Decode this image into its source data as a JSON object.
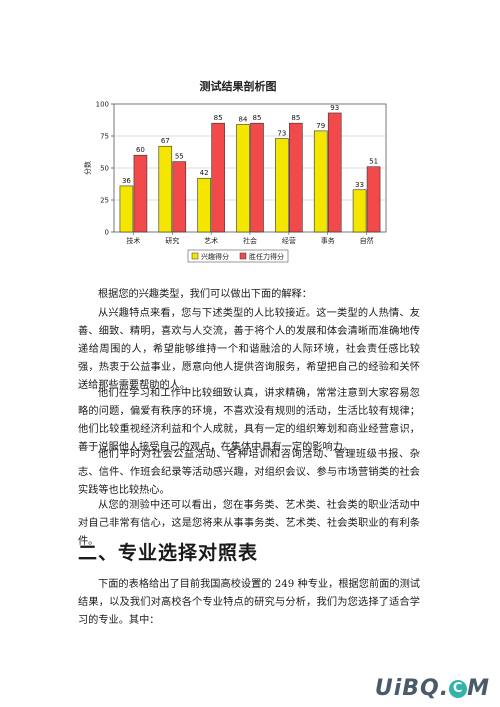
{
  "chart_data": {
    "type": "bar",
    "title": "测试结果剖析图",
    "xlabel": "",
    "ylabel": "分数",
    "ylim": [
      0,
      100
    ],
    "yticks": [
      0,
      25,
      50,
      75,
      100
    ],
    "grid": true,
    "legend_position": "bottom",
    "categories": [
      "技术",
      "研究",
      "艺术",
      "社会",
      "经营",
      "事务",
      "自然"
    ],
    "series": [
      {
        "name": "兴趣得分",
        "color": "#f5e600",
        "values": [
          36,
          67,
          42,
          84,
          73,
          79,
          33
        ]
      },
      {
        "name": "胜任力得分",
        "color": "#f24a4a",
        "values": [
          60,
          55,
          85,
          85,
          85,
          93,
          51
        ]
      }
    ]
  },
  "document": {
    "intro": "根据您的兴趣类型，我们可以做出下面的解释：",
    "p1": "从兴趣特点来看，您与下述类型的人比较接近。这一类型的人热情、友善、细致、精明，喜欢与人交流，善于将个人的发展和体会清晰而准确地传递给周围的人，希望能够维持一个和谐融洽的人际环境，社会责任感比较强，热衷于公益事业，愿意向他人提供咨询服务，希望把自己的经验和关怀送给那些需要帮助的人。",
    "p2": "他们在学习和工作中比较细致认真，讲求精确，常常注意到大家容易忽略的问题，偏爱有秩序的环境，不喜欢没有规则的活动，生活比较有规律；他们比较重视经济利益和个人成就，具有一定的组织筹划和商业经营意识，善于说服他人接受自己的观点，在集体中具有一定的影响力。",
    "p3": "他们平时对社会公益活动、各种培训和咨询活动、管理班级书报、杂志、信件、作班会纪录等活动感兴趣，对组织会议、参与市场营销类的社会实践等也比较热心。",
    "p4": "从您的测验中还可以看出，您在事务类、艺术类、社会类的职业活动中对自己非常有信心，这是您将来从事事务类、艺术类、社会类职业的有利条件。",
    "section_heading": "二、专业选择对照表",
    "p5": "下面的表格给出了目前我国高校设置的 249 种专业，根据您前面的测试结果，以及我们对高校各个专业特点的研究与分析，我们为您选择了适合学习的专业。其中："
  },
  "watermark": {
    "pre": "UiBQ",
    "dot": ".",
    "circle": "C",
    "post": "M"
  }
}
